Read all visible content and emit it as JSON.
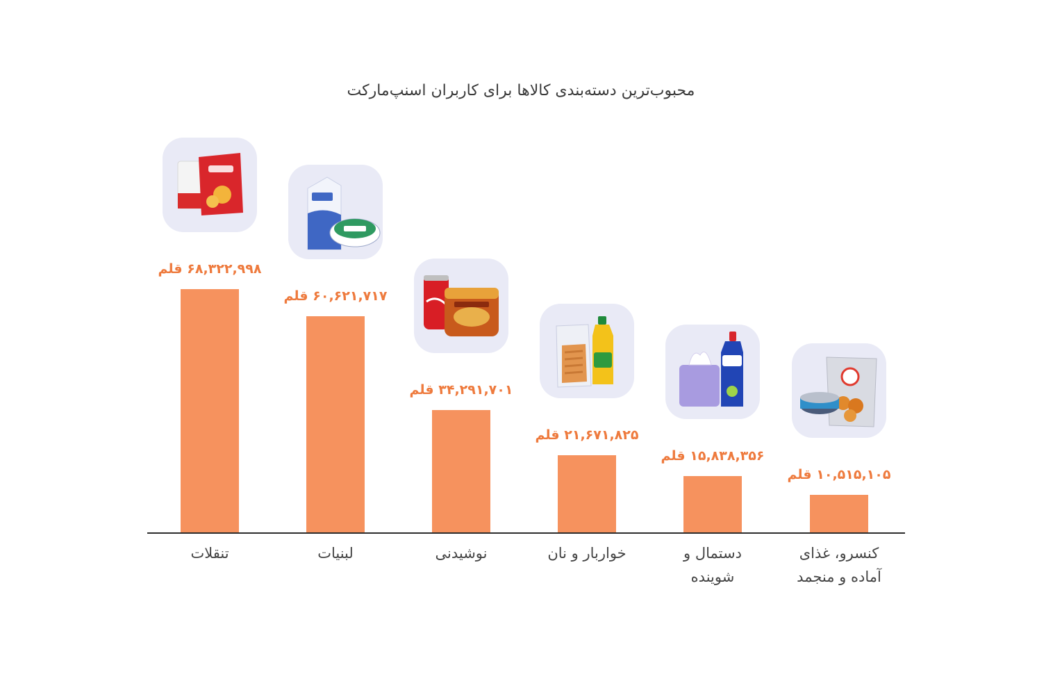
{
  "chart_data": {
    "type": "bar",
    "title": "محبوب‌ترین دسته‌بندی کالاها برای کاربران اسنپ‌مارکت",
    "unit": "قلم",
    "categories": [
      [
        "تنقلات"
      ],
      [
        "لبنیات"
      ],
      [
        "نوشیدنی"
      ],
      [
        "خواربار و نان"
      ],
      [
        "دستمال و",
        "شوینده"
      ],
      [
        "کنسرو، غذای",
        "آماده و منجمد"
      ]
    ],
    "values": [
      68322998,
      60621717,
      34291701,
      21671825,
      15838356,
      10515105
    ],
    "value_labels": [
      "۶۸,۳۲۲,۹۹۸",
      "۶۰,۶۲۱,۷۱۷",
      "۳۴,۲۹۱,۷۰۱",
      "۲۱,۶۷۱,۸۲۵",
      "۱۵,۸۳۸,۳۵۶",
      "۱۰,۵۱۵,۱۰۵"
    ],
    "icons": [
      "snacks-icon",
      "dairy-icon",
      "beverages-icon",
      "groceries-icon",
      "tissue-detergent-icon",
      "canned-frozen-food-icon"
    ],
    "ylim": [
      0,
      68322998
    ],
    "grid": false,
    "legend": "none",
    "bar_color": "#f6925e",
    "label_color": "#ee7a3d"
  }
}
